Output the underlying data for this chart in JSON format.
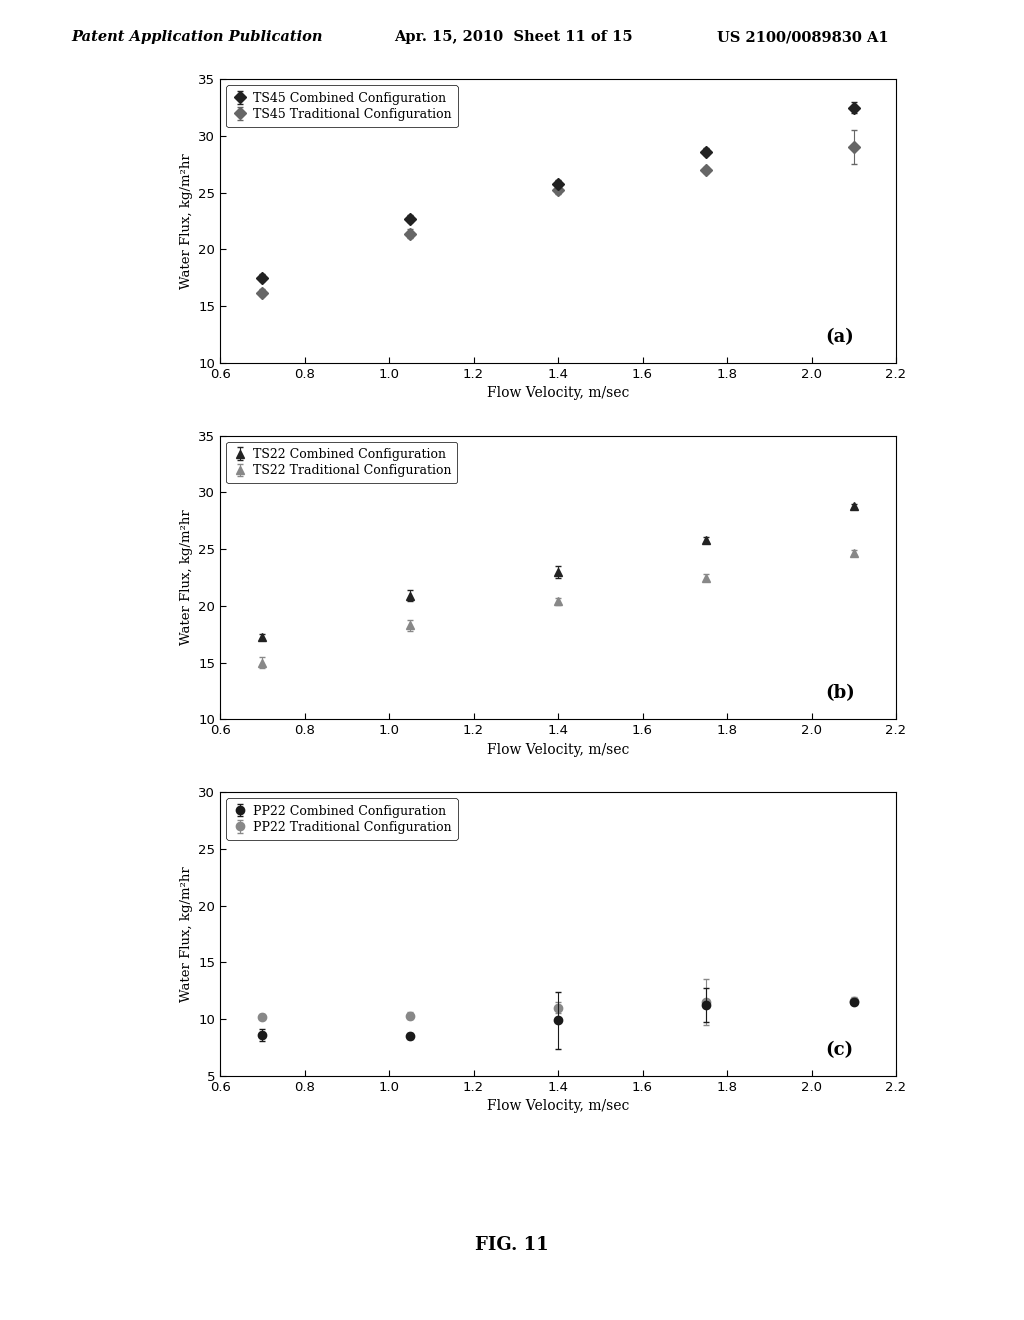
{
  "header_left": "Patent Application Publication",
  "header_mid": "Apr. 15, 2010  Sheet 11 of 15",
  "header_right": "US 2100/0089830 A1",
  "fig_label": "FIG. 11",
  "plots": [
    {
      "label": "(a)",
      "ylim": [
        10,
        35
      ],
      "yticks": [
        10,
        15,
        20,
        25,
        30,
        35
      ],
      "xlim": [
        0.6,
        2.2
      ],
      "xticks": [
        0.6,
        0.8,
        1.0,
        1.2,
        1.4,
        1.6,
        1.8,
        2.0,
        2.2
      ],
      "ylabel": "Water Flux, kg/m²hr",
      "xlabel": "Flow Velocity, m/sec",
      "legend1": "TS45 Combined Configuration",
      "legend2": "TS45 Traditional Configuration",
      "marker": "D",
      "color1": "#222222",
      "color2": "#666666",
      "series1": {
        "x": [
          0.7,
          1.05,
          1.4,
          1.75,
          2.1
        ],
        "y": [
          17.5,
          22.7,
          25.8,
          28.6,
          32.5
        ],
        "yerr": [
          0.3,
          0.3,
          0.3,
          0.3,
          0.5
        ]
      },
      "series2": {
        "x": [
          0.7,
          1.05,
          1.4,
          1.75,
          2.1
        ],
        "y": [
          16.2,
          21.4,
          25.2,
          27.0,
          29.0
        ],
        "yerr": [
          0.3,
          0.4,
          0.3,
          0.3,
          1.5
        ]
      }
    },
    {
      "label": "(b)",
      "ylim": [
        10,
        35
      ],
      "yticks": [
        10,
        15,
        20,
        25,
        30,
        35
      ],
      "xlim": [
        0.6,
        2.2
      ],
      "xticks": [
        0.6,
        0.8,
        1.0,
        1.2,
        1.4,
        1.6,
        1.8,
        2.0,
        2.2
      ],
      "ylabel": "Water Flux, kg/m²hr",
      "xlabel": "Flow Velocity, m/sec",
      "legend1": "TS22 Combined Configuration",
      "legend2": "TS22 Traditional Configuration",
      "marker": "^",
      "color1": "#222222",
      "color2": "#888888",
      "series1": {
        "x": [
          0.7,
          1.05,
          1.4,
          1.75,
          2.1
        ],
        "y": [
          17.3,
          20.9,
          23.0,
          25.8,
          28.8
        ],
        "yerr": [
          0.2,
          0.5,
          0.5,
          0.3,
          0.2
        ]
      },
      "series2": {
        "x": [
          0.7,
          1.05,
          1.4,
          1.75,
          2.1
        ],
        "y": [
          15.0,
          18.3,
          20.4,
          22.5,
          24.7
        ],
        "yerr": [
          0.5,
          0.5,
          0.3,
          0.3,
          0.2
        ]
      }
    },
    {
      "label": "(c)",
      "ylim": [
        5,
        30
      ],
      "yticks": [
        5,
        10,
        15,
        20,
        25,
        30
      ],
      "xlim": [
        0.6,
        2.2
      ],
      "xticks": [
        0.6,
        0.8,
        1.0,
        1.2,
        1.4,
        1.6,
        1.8,
        2.0,
        2.2
      ],
      "ylabel": "Water Flux, kg/m²hr",
      "xlabel": "Flow Velocity, m/sec",
      "legend1": "PP22 Combined Configuration",
      "legend2": "PP22 Traditional Configuration",
      "marker": "o",
      "color1": "#1a1a1a",
      "color2": "#888888",
      "series1": {
        "x": [
          0.7,
          1.05,
          1.4,
          1.75,
          2.1
        ],
        "y": [
          8.6,
          8.5,
          9.9,
          11.2,
          11.5
        ],
        "yerr": [
          0.5,
          0.3,
          2.5,
          1.5,
          0.2
        ]
      },
      "series2": {
        "x": [
          0.7,
          1.05,
          1.4,
          1.75,
          2.1
        ],
        "y": [
          10.2,
          10.3,
          11.0,
          11.5,
          11.6
        ],
        "yerr": [
          0.2,
          0.3,
          0.5,
          2.0,
          0.3
        ]
      }
    }
  ]
}
